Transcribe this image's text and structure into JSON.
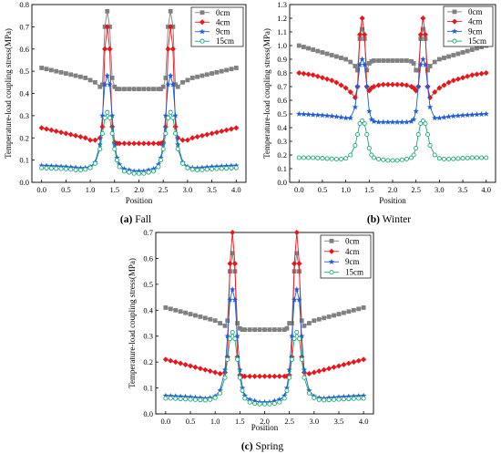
{
  "chart_data": [
    {
      "type": "line",
      "caption": {
        "label": "(a)",
        "text": " Fall"
      },
      "xlabel": "Position",
      "ylabel": "Temperature-load coupling stress(MPa)",
      "xlim": [
        -0.2,
        4.2
      ],
      "ylim": [
        0,
        0.8
      ],
      "xticks": [
        "0.0",
        "0.5",
        "1.0",
        "1.5",
        "2.0",
        "2.5",
        "3.0",
        "3.5",
        "4.0"
      ],
      "yticks": [
        "0.0",
        "0.1",
        "0.2",
        "0.3",
        "0.4",
        "0.5",
        "0.6",
        "0.7",
        "0.8"
      ],
      "x": [
        0.0,
        0.1,
        0.2,
        0.3,
        0.4,
        0.5,
        0.6,
        0.7,
        0.8,
        0.9,
        1.0,
        1.1,
        1.2,
        1.25,
        1.3,
        1.35,
        1.4,
        1.45,
        1.5,
        1.55,
        1.6,
        1.7,
        1.8,
        1.9,
        2.0,
        2.1,
        2.2,
        2.3,
        2.4,
        2.45,
        2.5,
        2.55,
        2.6,
        2.65,
        2.7,
        2.75,
        2.8,
        2.9,
        3.0,
        3.1,
        3.2,
        3.3,
        3.4,
        3.5,
        3.6,
        3.7,
        3.8,
        3.9,
        4.0
      ],
      "legend_position": "top-right",
      "series": [
        {
          "name": "0cm",
          "color": "#808080",
          "marker": "square",
          "values": [
            0.515,
            0.51,
            0.505,
            0.5,
            0.495,
            0.49,
            0.485,
            0.48,
            0.475,
            0.47,
            0.46,
            0.45,
            0.43,
            0.44,
            0.7,
            0.77,
            0.7,
            0.47,
            0.43,
            0.42,
            0.42,
            0.42,
            0.42,
            0.42,
            0.42,
            0.42,
            0.42,
            0.42,
            0.42,
            0.42,
            0.43,
            0.47,
            0.7,
            0.77,
            0.7,
            0.44,
            0.43,
            0.45,
            0.46,
            0.47,
            0.475,
            0.48,
            0.485,
            0.49,
            0.495,
            0.5,
            0.505,
            0.51,
            0.515
          ]
        },
        {
          "name": "4cm",
          "color": "#e8161c",
          "marker": "diamond",
          "values": [
            0.245,
            0.24,
            0.235,
            0.23,
            0.225,
            0.22,
            0.215,
            0.21,
            0.205,
            0.2,
            0.19,
            0.19,
            0.2,
            0.25,
            0.6,
            0.7,
            0.6,
            0.25,
            0.18,
            0.175,
            0.175,
            0.175,
            0.175,
            0.175,
            0.175,
            0.175,
            0.175,
            0.175,
            0.175,
            0.175,
            0.18,
            0.25,
            0.6,
            0.7,
            0.6,
            0.25,
            0.2,
            0.19,
            0.19,
            0.2,
            0.205,
            0.21,
            0.215,
            0.22,
            0.225,
            0.23,
            0.235,
            0.24,
            0.245
          ]
        },
        {
          "name": "9cm",
          "color": "#1f5cd6",
          "marker": "star",
          "values": [
            0.075,
            0.074,
            0.073,
            0.072,
            0.071,
            0.07,
            0.068,
            0.066,
            0.064,
            0.065,
            0.07,
            0.09,
            0.17,
            0.3,
            0.44,
            0.48,
            0.44,
            0.3,
            0.17,
            0.11,
            0.08,
            0.06,
            0.055,
            0.05,
            0.05,
            0.05,
            0.055,
            0.06,
            0.08,
            0.11,
            0.17,
            0.3,
            0.44,
            0.48,
            0.44,
            0.3,
            0.17,
            0.09,
            0.07,
            0.065,
            0.064,
            0.066,
            0.068,
            0.07,
            0.071,
            0.072,
            0.073,
            0.074,
            0.075
          ]
        },
        {
          "name": "15cm",
          "color": "#1aa876",
          "marker": "circle",
          "values": [
            0.065,
            0.064,
            0.063,
            0.062,
            0.061,
            0.06,
            0.058,
            0.056,
            0.055,
            0.058,
            0.065,
            0.085,
            0.15,
            0.22,
            0.29,
            0.315,
            0.29,
            0.22,
            0.15,
            0.1,
            0.07,
            0.05,
            0.045,
            0.04,
            0.04,
            0.04,
            0.045,
            0.05,
            0.07,
            0.1,
            0.15,
            0.22,
            0.29,
            0.315,
            0.29,
            0.22,
            0.15,
            0.085,
            0.065,
            0.058,
            0.055,
            0.056,
            0.058,
            0.06,
            0.061,
            0.062,
            0.063,
            0.064,
            0.065
          ]
        }
      ]
    },
    {
      "type": "line",
      "caption": {
        "label": "(b)",
        "text": " Winter"
      },
      "xlabel": "Position",
      "ylabel": "Temperature-load coupling stress(MPa)",
      "xlim": [
        -0.2,
        4.2
      ],
      "ylim": [
        0,
        1.3
      ],
      "xticks": [
        "0.0",
        "0.5",
        "1.0",
        "1.5",
        "2.0",
        "2.5",
        "3.0",
        "3.5",
        "4.0"
      ],
      "yticks": [
        "0.0",
        "0.1",
        "0.2",
        "0.3",
        "0.4",
        "0.5",
        "0.6",
        "0.7",
        "0.8",
        "0.9",
        "1.0",
        "1.1",
        "1.2",
        "1.3"
      ],
      "x": [
        0.0,
        0.1,
        0.2,
        0.3,
        0.4,
        0.5,
        0.6,
        0.7,
        0.8,
        0.9,
        1.0,
        1.1,
        1.2,
        1.25,
        1.3,
        1.35,
        1.4,
        1.45,
        1.5,
        1.55,
        1.6,
        1.7,
        1.8,
        1.9,
        2.0,
        2.1,
        2.2,
        2.3,
        2.4,
        2.45,
        2.5,
        2.55,
        2.6,
        2.65,
        2.7,
        2.75,
        2.8,
        2.9,
        3.0,
        3.1,
        3.2,
        3.3,
        3.4,
        3.5,
        3.6,
        3.7,
        3.8,
        3.9,
        4.0
      ],
      "legend_position": "top-right",
      "series": [
        {
          "name": "0cm",
          "color": "#808080",
          "marker": "square",
          "values": [
            1.0,
            0.99,
            0.98,
            0.97,
            0.96,
            0.95,
            0.94,
            0.93,
            0.92,
            0.91,
            0.9,
            0.88,
            0.85,
            0.82,
            1.05,
            1.12,
            1.05,
            0.82,
            0.87,
            0.885,
            0.89,
            0.89,
            0.89,
            0.89,
            0.89,
            0.89,
            0.89,
            0.89,
            0.885,
            0.87,
            0.82,
            0.82,
            1.05,
            1.12,
            1.05,
            0.82,
            0.85,
            0.88,
            0.9,
            0.91,
            0.92,
            0.93,
            0.94,
            0.95,
            0.96,
            0.97,
            0.98,
            0.99,
            1.0
          ]
        },
        {
          "name": "4cm",
          "color": "#e8161c",
          "marker": "diamond",
          "values": [
            0.8,
            0.795,
            0.79,
            0.785,
            0.775,
            0.765,
            0.755,
            0.745,
            0.73,
            0.71,
            0.69,
            0.66,
            0.62,
            0.7,
            1.08,
            1.2,
            1.08,
            0.7,
            0.67,
            0.69,
            0.7,
            0.71,
            0.715,
            0.715,
            0.715,
            0.715,
            0.715,
            0.71,
            0.7,
            0.69,
            0.67,
            0.7,
            1.08,
            1.2,
            1.08,
            0.7,
            0.62,
            0.66,
            0.69,
            0.71,
            0.73,
            0.745,
            0.755,
            0.765,
            0.775,
            0.785,
            0.79,
            0.795,
            0.8
          ]
        },
        {
          "name": "9cm",
          "color": "#1f5cd6",
          "marker": "star",
          "values": [
            0.5,
            0.498,
            0.496,
            0.494,
            0.492,
            0.49,
            0.487,
            0.484,
            0.48,
            0.475,
            0.47,
            0.47,
            0.55,
            0.7,
            0.86,
            0.9,
            0.86,
            0.7,
            0.52,
            0.46,
            0.445,
            0.44,
            0.44,
            0.44,
            0.44,
            0.44,
            0.44,
            0.44,
            0.445,
            0.46,
            0.52,
            0.7,
            0.86,
            0.9,
            0.86,
            0.7,
            0.55,
            0.47,
            0.47,
            0.475,
            0.48,
            0.484,
            0.487,
            0.49,
            0.492,
            0.494,
            0.496,
            0.498,
            0.5
          ]
        },
        {
          "name": "15cm",
          "color": "#1aa876",
          "marker": "circle",
          "values": [
            0.18,
            0.18,
            0.18,
            0.18,
            0.178,
            0.176,
            0.174,
            0.172,
            0.17,
            0.17,
            0.175,
            0.2,
            0.27,
            0.35,
            0.43,
            0.45,
            0.43,
            0.35,
            0.25,
            0.2,
            0.18,
            0.17,
            0.165,
            0.16,
            0.16,
            0.16,
            0.165,
            0.17,
            0.18,
            0.2,
            0.25,
            0.35,
            0.43,
            0.45,
            0.43,
            0.35,
            0.27,
            0.2,
            0.175,
            0.17,
            0.17,
            0.172,
            0.174,
            0.176,
            0.178,
            0.18,
            0.18,
            0.18,
            0.18
          ]
        }
      ]
    },
    {
      "type": "line",
      "caption": {
        "label": "(c)",
        "text": " Spring"
      },
      "xlabel": "Position",
      "ylabel": "Temperature-load coupling stress(MPa)",
      "xlim": [
        -0.2,
        4.2
      ],
      "ylim": [
        0,
        0.7
      ],
      "xticks": [
        "0.0",
        "0.5",
        "1.0",
        "1.5",
        "2.0",
        "2.5",
        "3.0",
        "3.5",
        "4.0"
      ],
      "yticks": [
        "0.0",
        "0.1",
        "0.2",
        "0.3",
        "0.4",
        "0.5",
        "0.6",
        "0.7"
      ],
      "x": [
        0.0,
        0.1,
        0.2,
        0.3,
        0.4,
        0.5,
        0.6,
        0.7,
        0.8,
        0.9,
        1.0,
        1.1,
        1.2,
        1.25,
        1.3,
        1.35,
        1.4,
        1.45,
        1.5,
        1.55,
        1.6,
        1.7,
        1.8,
        1.9,
        2.0,
        2.1,
        2.2,
        2.3,
        2.4,
        2.45,
        2.5,
        2.55,
        2.6,
        2.65,
        2.7,
        2.75,
        2.8,
        2.9,
        3.0,
        3.1,
        3.2,
        3.3,
        3.4,
        3.5,
        3.6,
        3.7,
        3.8,
        3.9,
        4.0
      ],
      "legend_position": "top-right",
      "series": [
        {
          "name": "0cm",
          "color": "#808080",
          "marker": "square",
          "values": [
            0.41,
            0.405,
            0.4,
            0.395,
            0.39,
            0.385,
            0.38,
            0.375,
            0.37,
            0.365,
            0.36,
            0.35,
            0.34,
            0.36,
            0.55,
            0.62,
            0.55,
            0.35,
            0.33,
            0.325,
            0.325,
            0.325,
            0.325,
            0.325,
            0.325,
            0.325,
            0.325,
            0.325,
            0.325,
            0.33,
            0.35,
            0.35,
            0.55,
            0.62,
            0.55,
            0.36,
            0.34,
            0.35,
            0.36,
            0.365,
            0.37,
            0.375,
            0.38,
            0.385,
            0.39,
            0.395,
            0.4,
            0.405,
            0.41
          ]
        },
        {
          "name": "4cm",
          "color": "#e8161c",
          "marker": "diamond",
          "values": [
            0.21,
            0.205,
            0.2,
            0.195,
            0.19,
            0.185,
            0.18,
            0.175,
            0.17,
            0.165,
            0.16,
            0.155,
            0.16,
            0.22,
            0.58,
            0.7,
            0.58,
            0.22,
            0.15,
            0.145,
            0.145,
            0.145,
            0.145,
            0.145,
            0.145,
            0.145,
            0.145,
            0.145,
            0.145,
            0.145,
            0.15,
            0.22,
            0.58,
            0.7,
            0.58,
            0.22,
            0.16,
            0.155,
            0.16,
            0.165,
            0.17,
            0.175,
            0.18,
            0.185,
            0.19,
            0.195,
            0.2,
            0.205,
            0.21
          ]
        },
        {
          "name": "9cm",
          "color": "#1f5cd6",
          "marker": "star",
          "values": [
            0.07,
            0.069,
            0.068,
            0.067,
            0.066,
            0.065,
            0.063,
            0.062,
            0.06,
            0.062,
            0.068,
            0.09,
            0.17,
            0.3,
            0.44,
            0.48,
            0.44,
            0.3,
            0.17,
            0.1,
            0.07,
            0.055,
            0.05,
            0.045,
            0.045,
            0.045,
            0.05,
            0.055,
            0.07,
            0.1,
            0.17,
            0.3,
            0.44,
            0.48,
            0.44,
            0.3,
            0.17,
            0.09,
            0.068,
            0.062,
            0.06,
            0.062,
            0.063,
            0.065,
            0.066,
            0.067,
            0.068,
            0.069,
            0.07
          ]
        },
        {
          "name": "15cm",
          "color": "#1aa876",
          "marker": "circle",
          "values": [
            0.06,
            0.06,
            0.059,
            0.058,
            0.057,
            0.056,
            0.055,
            0.054,
            0.053,
            0.055,
            0.062,
            0.08,
            0.14,
            0.21,
            0.29,
            0.315,
            0.29,
            0.21,
            0.14,
            0.09,
            0.06,
            0.045,
            0.04,
            0.038,
            0.038,
            0.038,
            0.04,
            0.045,
            0.06,
            0.09,
            0.14,
            0.21,
            0.29,
            0.315,
            0.29,
            0.21,
            0.14,
            0.08,
            0.062,
            0.055,
            0.053,
            0.054,
            0.055,
            0.056,
            0.057,
            0.058,
            0.059,
            0.06,
            0.06
          ]
        }
      ]
    }
  ]
}
